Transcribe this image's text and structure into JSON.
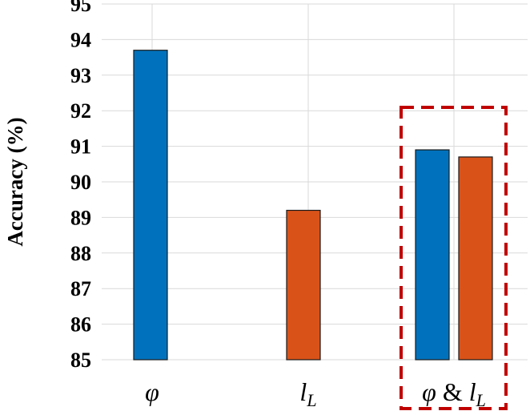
{
  "chart_data": {
    "type": "bar",
    "title": "",
    "xlabel": "",
    "ylabel": "Accuracy (%)",
    "ylim": [
      85,
      95
    ],
    "yticks": [
      "85",
      "86",
      "87",
      "88",
      "89",
      "90",
      "91",
      "92",
      "93",
      "94",
      "95"
    ],
    "grid": true,
    "categories": [
      "φ",
      "l_L",
      "φ & l_L"
    ],
    "bars": [
      {
        "category": "φ",
        "value": 93.7,
        "color": "#0072BD"
      },
      {
        "category": "l_L",
        "value": 89.2,
        "color": "#D95319"
      },
      {
        "category": "φ & l_L",
        "value": 90.9,
        "color": "#0072BD"
      },
      {
        "category": "φ & l_L",
        "value": 90.7,
        "color": "#D95319"
      }
    ],
    "annotations": [
      {
        "type": "dashed-rectangle",
        "color": "#C00000",
        "encloses": "φ & l_L"
      }
    ]
  }
}
